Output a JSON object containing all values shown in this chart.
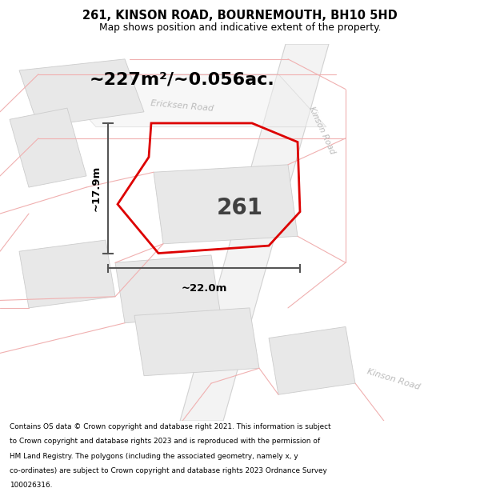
{
  "title": "261, KINSON ROAD, BOURNEMOUTH, BH10 5HD",
  "subtitle": "Map shows position and indicative extent of the property.",
  "area_text": "~227m²/~0.056ac.",
  "plot_number": "261",
  "dim_height": "~17.9m",
  "dim_width": "~22.0m",
  "footer_lines": [
    "Contains OS data © Crown copyright and database right 2021. This information is subject",
    "to Crown copyright and database rights 2023 and is reproduced with the permission of",
    "HM Land Registry. The polygons (including the associated geometry, namely x, y",
    "co-ordinates) are subject to Crown copyright and database rights 2023 Ordnance Survey",
    "100026316."
  ],
  "map_bg": "#f7f7f7",
  "road_fill": "#fce8e8",
  "road_line": "#f0b0b0",
  "road_outline": "#c8c8c8",
  "building_fill": "#e8e8e8",
  "building_edge": "#cccccc",
  "property_color": "#dd0000",
  "dim_color": "#555555",
  "label_road_color": "#bbbbbb",
  "figsize": [
    6.0,
    6.25
  ],
  "dpi": 100
}
